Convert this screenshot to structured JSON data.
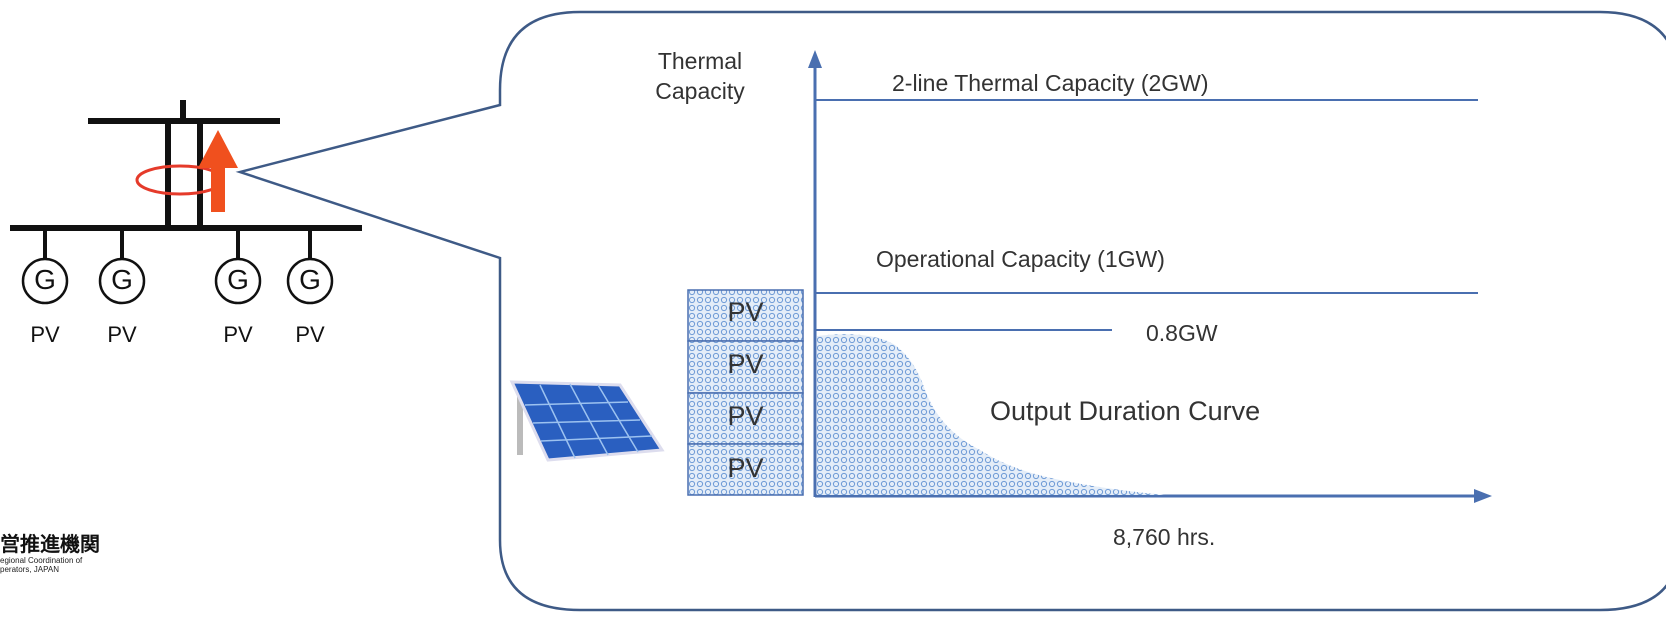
{
  "left_diagram": {
    "generators": [
      "G",
      "G",
      "G",
      "G"
    ],
    "labels": [
      "PV",
      "PV",
      "PV",
      "PV"
    ]
  },
  "logo": {
    "name": "営推進機関",
    "subtitle": "egional Coordination of perators, JAPAN"
  },
  "callout": {
    "y_axis_label": "Thermal Capacity",
    "lines": [
      "2-line Thermal Capacity (2GW)",
      "Operational Capacity (1GW)",
      "0.8GW"
    ],
    "curve_label": "Output Duration Curve",
    "x_axis_label": "8,760 hrs.",
    "pv_stack": [
      "PV",
      "PV",
      "PV",
      "PV"
    ]
  }
}
